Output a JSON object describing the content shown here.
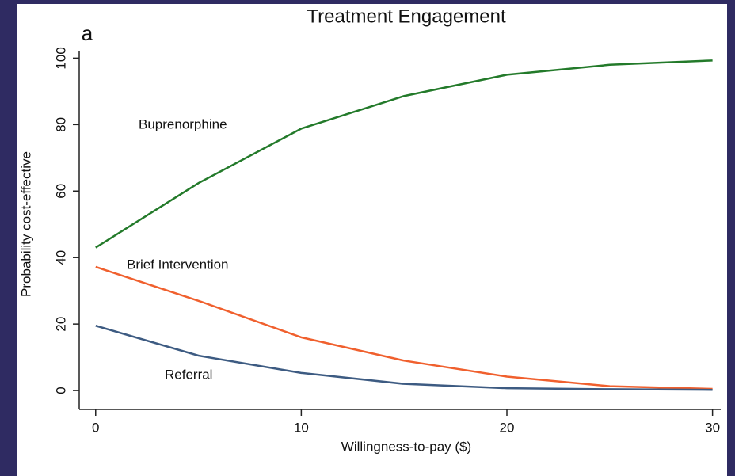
{
  "chart_data": {
    "type": "line",
    "title": "Treatment Engagement",
    "panel_label": "a",
    "x_label": "Willingness-to-pay ($)",
    "y_label": "Probability cost-effective",
    "x": [
      0,
      5,
      10,
      15,
      20,
      25,
      30
    ],
    "series": [
      {
        "name": "Buprenorphine",
        "color": "#237a2a",
        "values": [
          43,
          62.4,
          78.8,
          88.6,
          95,
          98,
          99.3
        ]
      },
      {
        "name": "Brief Intervention",
        "color": "#f0602e",
        "values": [
          37.2,
          27,
          16,
          9,
          4.2,
          1.3,
          0.5
        ]
      },
      {
        "name": "Referral",
        "color": "#3d5b82",
        "values": [
          19.5,
          10.5,
          5.3,
          2,
          0.7,
          0.4,
          0.2
        ]
      }
    ],
    "xlim": [
      -0.8,
      30.4
    ],
    "ylim": [
      -5.7,
      102
    ],
    "xticks": [
      0,
      10,
      20,
      30
    ],
    "yticks": [
      0,
      20,
      40,
      60,
      80,
      100
    ],
    "grid": false
  }
}
